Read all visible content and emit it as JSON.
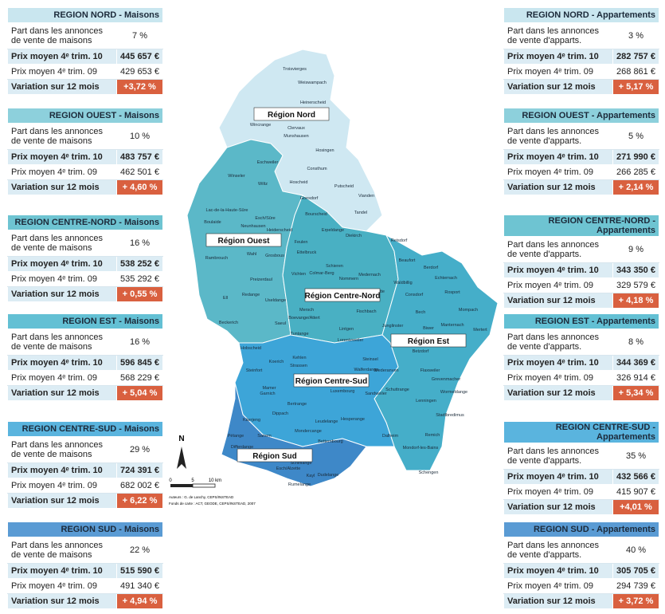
{
  "tables": [
    {
      "title": "REGION NORD - Maisons",
      "rows": [
        [
          "Part dans les annonces de vente de maisons",
          "7 %"
        ],
        [
          "Prix moyen 4ᵉ trim. 10",
          "445 657 €"
        ],
        [
          "Prix moyen 4ᵉ trim. 09",
          "429 653 €"
        ],
        [
          "Variation sur 12 mois",
          "+3,72 %"
        ]
      ]
    },
    {
      "title": "REGION OUEST - Maisons",
      "rows": [
        [
          "Part dans les annonces de vente de maisons",
          "10 %"
        ],
        [
          "Prix moyen 4ᵉ trim. 10",
          "483 757 €"
        ],
        [
          "Prix moyen 4ᵉ trim. 09",
          "462 501 €"
        ],
        [
          "Variation sur 12 mois",
          "+ 4,60 %"
        ]
      ]
    },
    {
      "title": "REGION CENTRE-NORD - Maisons",
      "rows": [
        [
          "Part dans les annonces de vente de maisons",
          "16 %"
        ],
        [
          "Prix moyen 4ᵉ trim. 10",
          "538 252 €"
        ],
        [
          "Prix moyen 4ᵉ trim. 09",
          "535 292 €"
        ],
        [
          "Variation sur 12 mois",
          "+ 0,55 %"
        ]
      ]
    },
    {
      "title": "REGION EST - Maisons",
      "rows": [
        [
          "Part dans les annonces de vente de maisons",
          "16 %"
        ],
        [
          "Prix moyen 4ᵉ trim. 10",
          "596 845 €"
        ],
        [
          "Prix moyen 4ᵉ trim. 09",
          "568 229 €"
        ],
        [
          "Variation sur 12 mois",
          "+ 5,04 %"
        ]
      ]
    },
    {
      "title": "REGION CENTRE-SUD - Maisons",
      "rows": [
        [
          "Part dans les annonces de vente de maisons",
          "29 %"
        ],
        [
          "Prix moyen 4ᵉ trim. 10",
          "724 391 €"
        ],
        [
          "Prix moyen 4ᵉ trim. 09",
          "682 002 €"
        ],
        [
          "Variation sur 12 mois",
          "+ 6,22 %"
        ]
      ]
    },
    {
      "title": "REGION SUD - Maisons",
      "rows": [
        [
          "Part dans les annonces de vente de maisons",
          "22 %"
        ],
        [
          "Prix moyen 4ᵉ trim. 10",
          "515 590 €"
        ],
        [
          "Prix moyen 4ᵉ trim. 09",
          "491 340 €"
        ],
        [
          "Variation sur 12 mois",
          "+ 4,94 %"
        ]
      ]
    },
    {
      "title": "REGION NORD - Appartements",
      "rows": [
        [
          "Part dans les annonces de vente d'apparts.",
          "3 %"
        ],
        [
          "Prix moyen 4ᵉ trim. 10",
          "282 757 €"
        ],
        [
          "Prix moyen 4ᵉ trim. 09",
          "268 861 €"
        ],
        [
          "Variation sur 12 mois",
          "+ 5,17 %"
        ]
      ]
    },
    {
      "title": "REGION OUEST - Appartements",
      "rows": [
        [
          "Part dans les annonces de vente d'apparts.",
          "5 %"
        ],
        [
          "Prix moyen 4ᵉ trim. 10",
          "271 990 €"
        ],
        [
          "Prix moyen 4ᵉ trim. 09",
          "266 285 €"
        ],
        [
          "Variation sur 12 mois",
          "+ 2,14 %"
        ]
      ]
    },
    {
      "title": "REGION CENTRE-NORD - Appartements",
      "rows": [
        [
          "Part dans les annonces de vente d'apparts.",
          "9 %"
        ],
        [
          "Prix moyen 4ᵉ trim. 10",
          "343 350 €"
        ],
        [
          "Prix moyen 4ᵉ trim. 09",
          "329 579 €"
        ],
        [
          "Variation sur 12 mois",
          "+ 4,18 %"
        ]
      ]
    },
    {
      "title": "REGION EST - Appartements",
      "rows": [
        [
          "Part dans les annonces de vente d'apparts.",
          "8 %"
        ],
        [
          "Prix moyen 4ᵉ trim. 10",
          "344 369 €"
        ],
        [
          "Prix moyen 4ᵉ trim. 09",
          "326 914 €"
        ],
        [
          "Variation sur 12 mois",
          "+ 5,34 %"
        ]
      ]
    },
    {
      "title": "REGION CENTRE-SUD - Appartements",
      "rows": [
        [
          "Part dans les annonces de vente d'apparts.",
          "35 %"
        ],
        [
          "Prix moyen 4ᵉ trim. 10",
          "432 566 €"
        ],
        [
          "Prix moyen 4ᵉ trim. 09",
          "415 907 €"
        ],
        [
          "Variation sur 12 mois",
          "+4,01 %"
        ]
      ]
    },
    {
      "title": "REGION SUD - Appartements",
      "rows": [
        [
          "Part dans les annonces de vente d'apparts.",
          "40 %"
        ],
        [
          "Prix moyen 4ᵉ trim. 10",
          "305 705 €"
        ],
        [
          "Prix moyen 4ᵉ trim. 09",
          "294 739 €"
        ],
        [
          "Variation sur 12 mois",
          "+ 3,72 %"
        ]
      ]
    }
  ],
  "map": {
    "regions": [
      "Région Nord",
      "Région Ouest",
      "Région Centre-Nord",
      "Région Est",
      "Région Centre-Sud",
      "Région Sud"
    ],
    "communes": [
      "Troisvierges",
      "Weiswampach",
      "Heinerscheid",
      "Clervaux",
      "Wincrange",
      "Munshausen",
      "Hosingen",
      "Eschweiler",
      "Consthum",
      "Wiltz",
      "Winseler",
      "Goesdorf",
      "Hoscheid",
      "Putscheid",
      "Vianden",
      "Tandel",
      "Bourscheid",
      "Diekirch",
      "Lac-de-la-Haute-Sûre",
      "Boulaide",
      "Esch/Sûre",
      "Neunhausen",
      "Heiderscheid",
      "Feulen",
      "Ettelbruck",
      "Erpeldange",
      "Reisdorf",
      "Beaufort",
      "Berdorf",
      "Echternach",
      "Rambrouch",
      "Wahl",
      "Grosbous",
      "Schieren",
      "Nommern",
      "Medernach",
      "Waldbillig",
      "Consdorf",
      "Rosport",
      "Preizerdaul",
      "Redange",
      "Vichten",
      "Colmar-Berg",
      "Ell",
      "Useldange",
      "Larochette",
      "Mompach",
      "Beckerich",
      "Boevange/Attert",
      "Mersch",
      "Fischbach",
      "Bech",
      "Manternach",
      "Mertert",
      "Saeul",
      "Tuntange",
      "Lintgen",
      "Junglinster",
      "Biwer",
      "Hobscheid",
      "Lorentzweiler",
      "Betzdorf",
      "Kehlen",
      "Koerich",
      "Steinsel",
      "Steinfort",
      "Walferdange",
      "Niederanven",
      "Grevenmacher",
      "Mamer",
      "Strassen",
      "Flaxweiler",
      "Garnich",
      "Bertrange",
      "Luxembourg",
      "Schuttrange",
      "Wormeldange",
      "Dippach",
      "Sandweiler",
      "Lenningen",
      "Käerjeng",
      "Leudelange",
      "Hesperange",
      "Stadtbredimus",
      "Pétange",
      "Sanem",
      "Mondercange",
      "Bettembourg",
      "Dalheim",
      "Remich",
      "Differdange",
      "Schifflange",
      "Kayl",
      "Dudelange",
      "Mondorf-les-Bains",
      "Esch/Alzette",
      "Rumelange",
      "Schengen"
    ],
    "north": "N",
    "scale": [
      "0",
      "5",
      "10 km"
    ],
    "credits": [
      "Auteurs : G. de Lanchy, CEPS/INSTEAD",
      "Fonds de carte : ACT, GEODE, CEPS/INSTEAD, 2007"
    ]
  }
}
